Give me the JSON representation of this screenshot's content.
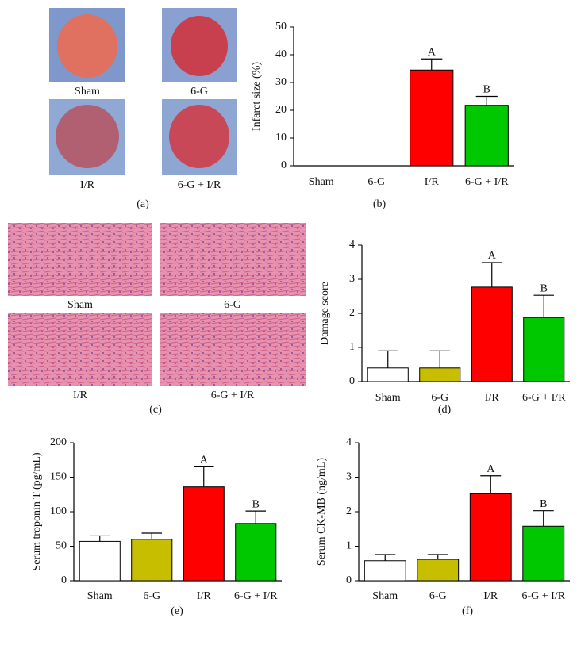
{
  "images": [
    {
      "labels": [
        "Sham",
        "6-G",
        "I/R",
        "6-G + I/R"
      ],
      "caption": "(a)"
    },
    {
      "labels": [
        "Sham",
        "6-G",
        "I/R",
        "6-G + I/R"
      ],
      "caption": "(c)"
    }
  ],
  "chart_data": [
    {
      "type": "bar",
      "y_label": "Infarct size (%)",
      "caption": "(b)",
      "categories": [
        "Sham",
        "6-G",
        "I/R",
        "6-G + I/R"
      ],
      "values": [
        0,
        0,
        34.5,
        21.8
      ],
      "errors": [
        null,
        null,
        4,
        3.2
      ],
      "annotations": [
        null,
        null,
        "A",
        "B"
      ],
      "colors": [
        "#ffffff",
        "#c8be00",
        "#ff0000",
        "#00c800"
      ],
      "ylim": [
        0,
        50
      ],
      "yticks": [
        0,
        10,
        20,
        30,
        40,
        50
      ]
    },
    {
      "type": "bar",
      "y_label": "Damage score",
      "caption": "(d)",
      "categories": [
        "Sham",
        "6-G",
        "I/R",
        "6-G + I/R"
      ],
      "values": [
        0.4,
        0.4,
        2.77,
        1.88
      ],
      "errors": [
        0.5,
        0.5,
        0.72,
        0.65
      ],
      "annotations": [
        null,
        null,
        "A",
        "B"
      ],
      "colors": [
        "#ffffff",
        "#c8be00",
        "#ff0000",
        "#00c800"
      ],
      "ylim": [
        0,
        4
      ],
      "yticks": [
        0,
        1,
        2,
        3,
        4
      ]
    },
    {
      "type": "bar",
      "y_label": "Serum troponin T (pg/mL)",
      "caption": "(e)",
      "categories": [
        "Sham",
        "6-G",
        "I/R",
        "6-G + I/R"
      ],
      "values": [
        57,
        60,
        136,
        83
      ],
      "errors": [
        8,
        9,
        29,
        18
      ],
      "annotations": [
        null,
        null,
        "A",
        "B"
      ],
      "colors": [
        "#ffffff",
        "#c8be00",
        "#ff0000",
        "#00c800"
      ],
      "ylim": [
        0,
        200
      ],
      "yticks": [
        0,
        50,
        100,
        150,
        200
      ]
    },
    {
      "type": "bar",
      "y_label": "Serum CK-MB (ng/mL)",
      "caption": "(f)",
      "categories": [
        "Sham",
        "6-G",
        "I/R",
        "6-G + I/R"
      ],
      "values": [
        0.58,
        0.62,
        2.52,
        1.58
      ],
      "errors": [
        0.18,
        0.14,
        0.52,
        0.45
      ],
      "annotations": [
        null,
        null,
        "A",
        "B"
      ],
      "colors": [
        "#ffffff",
        "#c8be00",
        "#ff0000",
        "#00c800"
      ],
      "ylim": [
        0,
        4
      ],
      "yticks": [
        0,
        1,
        2,
        3,
        4
      ]
    }
  ]
}
